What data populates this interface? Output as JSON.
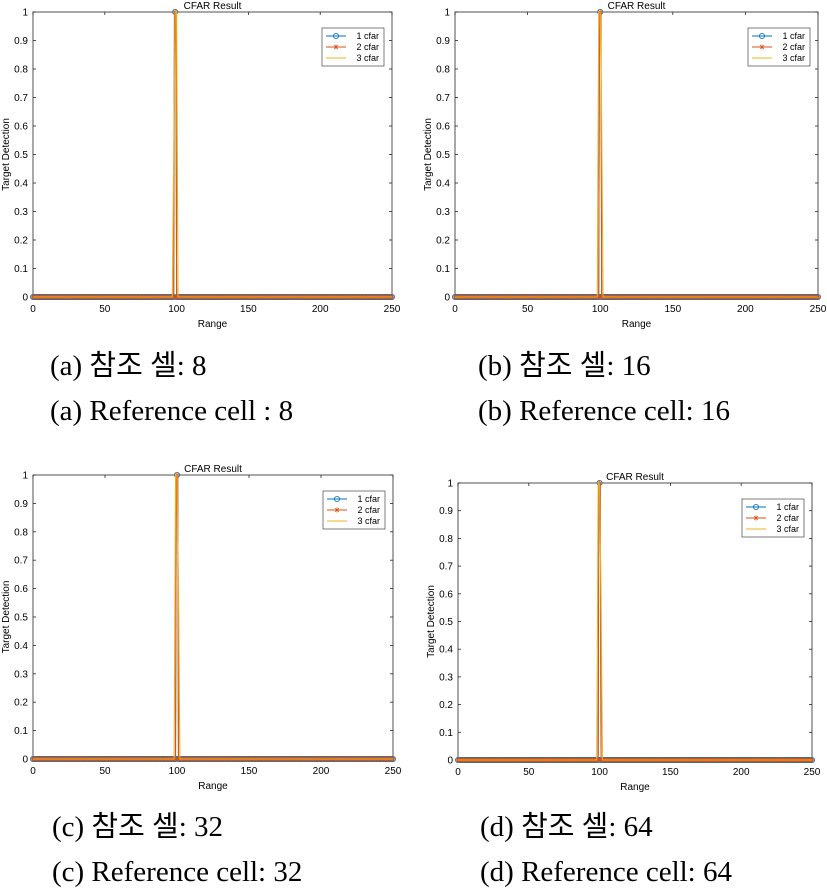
{
  "chart_data": [
    {
      "type": "line",
      "title": "CFAR Result",
      "xlabel": "Range",
      "ylabel": "Target Detection",
      "xlim": [
        0,
        250
      ],
      "ylim": [
        0,
        1
      ],
      "xticks": [
        "0",
        "50",
        "100",
        "150",
        "200",
        "250"
      ],
      "yticks": [
        "0",
        "0.1",
        "0.2",
        "0.3",
        "0.4",
        "0.5",
        "0.6",
        "0.7",
        "0.8",
        "0.9",
        "1"
      ],
      "legend_position": "top-right",
      "series": [
        {
          "name": "1 cfar",
          "color": "#0072bd",
          "marker": "o",
          "x": [
            0,
            250
          ],
          "y": [
            0,
            0
          ],
          "peak_x": 99
        },
        {
          "name": "2 cfar",
          "color": "#d95319",
          "marker": "*",
          "x": [
            0,
            250
          ],
          "y": [
            0,
            0
          ],
          "peak_x": 99
        },
        {
          "name": "3 cfar",
          "color": "#edb120",
          "marker": "",
          "x": [
            0,
            97,
            98,
            99,
            100,
            101,
            250
          ],
          "y": [
            0,
            0,
            0.5,
            1,
            1,
            0,
            0
          ]
        }
      ],
      "caption_kr": "(a) 참조 셀: 8",
      "caption_en": "(a) Reference cell : 8"
    },
    {
      "type": "line",
      "title": "CFAR Result",
      "xlabel": "Range",
      "ylabel": "Target Detection",
      "xlim": [
        0,
        250
      ],
      "ylim": [
        0,
        1
      ],
      "xticks": [
        "0",
        "50",
        "100",
        "150",
        "200",
        "250"
      ],
      "yticks": [
        "0",
        "0.1",
        "0.2",
        "0.3",
        "0.4",
        "0.5",
        "0.6",
        "0.7",
        "0.8",
        "0.9",
        "1"
      ],
      "legend_position": "top-right",
      "series": [
        {
          "name": "1 cfar",
          "color": "#0072bd",
          "marker": "o",
          "x": [
            0,
            250
          ],
          "y": [
            0,
            0
          ],
          "peak_x": 100
        },
        {
          "name": "2 cfar",
          "color": "#d95319",
          "marker": "*",
          "x": [
            0,
            250
          ],
          "y": [
            0,
            0
          ],
          "peak_x": 100
        },
        {
          "name": "3 cfar",
          "color": "#edb120",
          "marker": "",
          "x": [
            0,
            98,
            99,
            100,
            101,
            102,
            250
          ],
          "y": [
            0,
            0,
            1,
            1,
            0.62,
            0,
            0
          ]
        }
      ],
      "caption_kr": "(b) 참조 셀: 16",
      "caption_en": "(b) Reference cell: 16"
    },
    {
      "type": "line",
      "title": "CFAR Result",
      "xlabel": "Range",
      "ylabel": "Target Detection",
      "xlim": [
        0,
        250
      ],
      "ylim": [
        0,
        1
      ],
      "xticks": [
        "0",
        "50",
        "100",
        "150",
        "200",
        "250"
      ],
      "yticks": [
        "0",
        "0.1",
        "0.2",
        "0.3",
        "0.4",
        "0.5",
        "0.6",
        "0.7",
        "0.8",
        "0.9",
        "1"
      ],
      "legend_position": "top-right",
      "series": [
        {
          "name": "1 cfar",
          "color": "#0072bd",
          "marker": "o",
          "x": [
            0,
            250
          ],
          "y": [
            0,
            0
          ],
          "peak_x": 100
        },
        {
          "name": "2 cfar",
          "color": "#d95319",
          "marker": "*",
          "x": [
            0,
            250
          ],
          "y": [
            0,
            0
          ],
          "peak_x": 100
        },
        {
          "name": "3 cfar",
          "color": "#edb120",
          "marker": "",
          "x": [
            0,
            98,
            99,
            100,
            101,
            102,
            250
          ],
          "y": [
            0,
            0,
            1,
            1,
            0.62,
            0,
            0
          ]
        }
      ],
      "caption_kr": "(c) 참조 셀: 32",
      "caption_en": "(c) Reference cell: 32"
    },
    {
      "type": "line",
      "title": "CFAR Result",
      "xlabel": "Range",
      "ylabel": "Target Detection",
      "xlim": [
        0,
        250
      ],
      "ylim": [
        0,
        1
      ],
      "xticks": [
        "0",
        "50",
        "100",
        "150",
        "200",
        "250"
      ],
      "yticks": [
        "0",
        "0.1",
        "0.2",
        "0.3",
        "0.4",
        "0.5",
        "0.6",
        "0.7",
        "0.8",
        "0.9",
        "1"
      ],
      "legend_position": "top-right",
      "series": [
        {
          "name": "1 cfar",
          "color": "#0072bd",
          "marker": "o",
          "x": [
            0,
            250
          ],
          "y": [
            0,
            0
          ],
          "peak_x": 100
        },
        {
          "name": "2 cfar",
          "color": "#d95319",
          "marker": "*",
          "x": [
            0,
            250
          ],
          "y": [
            0,
            0
          ],
          "peak_x": 100
        },
        {
          "name": "3 cfar",
          "color": "#edb120",
          "marker": "",
          "x": [
            0,
            98,
            99,
            100,
            101,
            102,
            250
          ],
          "y": [
            0,
            0,
            1,
            1,
            0.6,
            0,
            0
          ]
        }
      ],
      "caption_kr": "(d) 참조 셀: 64",
      "caption_en": "(d) Reference cell: 64"
    }
  ]
}
